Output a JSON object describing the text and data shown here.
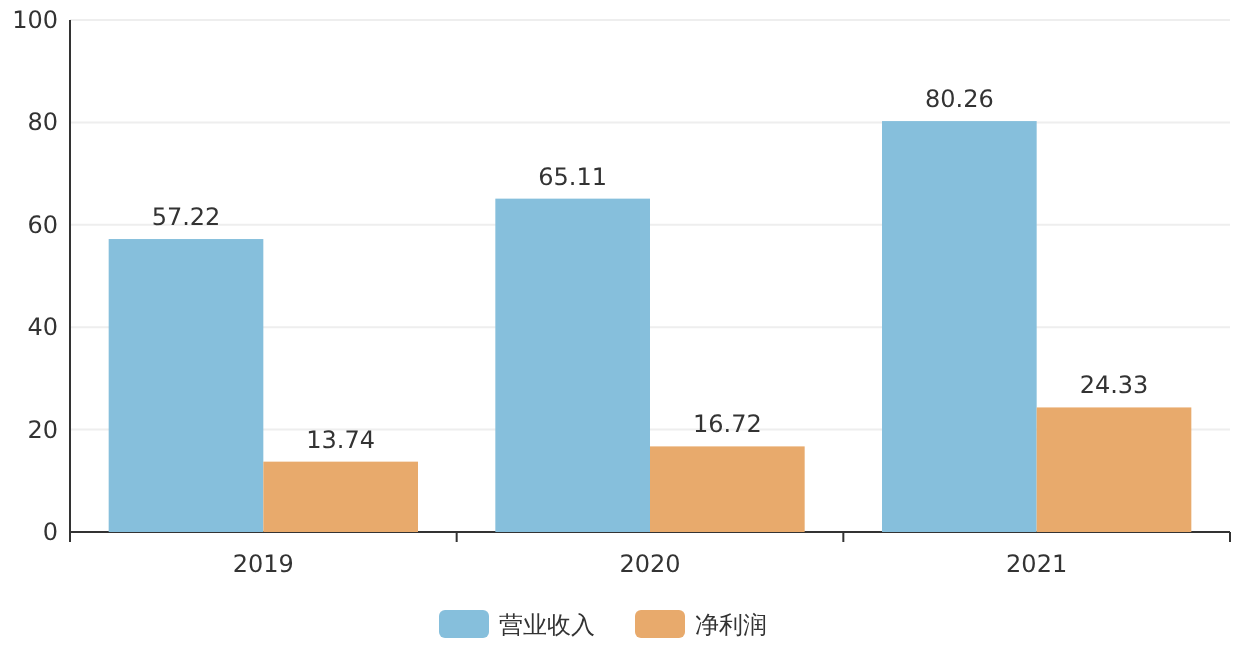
{
  "chart_data": {
    "type": "bar",
    "categories": [
      "2019",
      "2020",
      "2021"
    ],
    "series": [
      {
        "name": "营业收入",
        "color": "#86bfdc",
        "values": [
          57.22,
          65.11,
          80.26
        ]
      },
      {
        "name": "净利润",
        "color": "#e8aa6c",
        "values": [
          13.74,
          16.72,
          24.33
        ]
      }
    ],
    "ylim": [
      0,
      100
    ],
    "yticks": [
      0,
      20,
      40,
      60,
      80,
      100
    ],
    "grid": "y",
    "legend": "bottom",
    "data_labels": true
  }
}
